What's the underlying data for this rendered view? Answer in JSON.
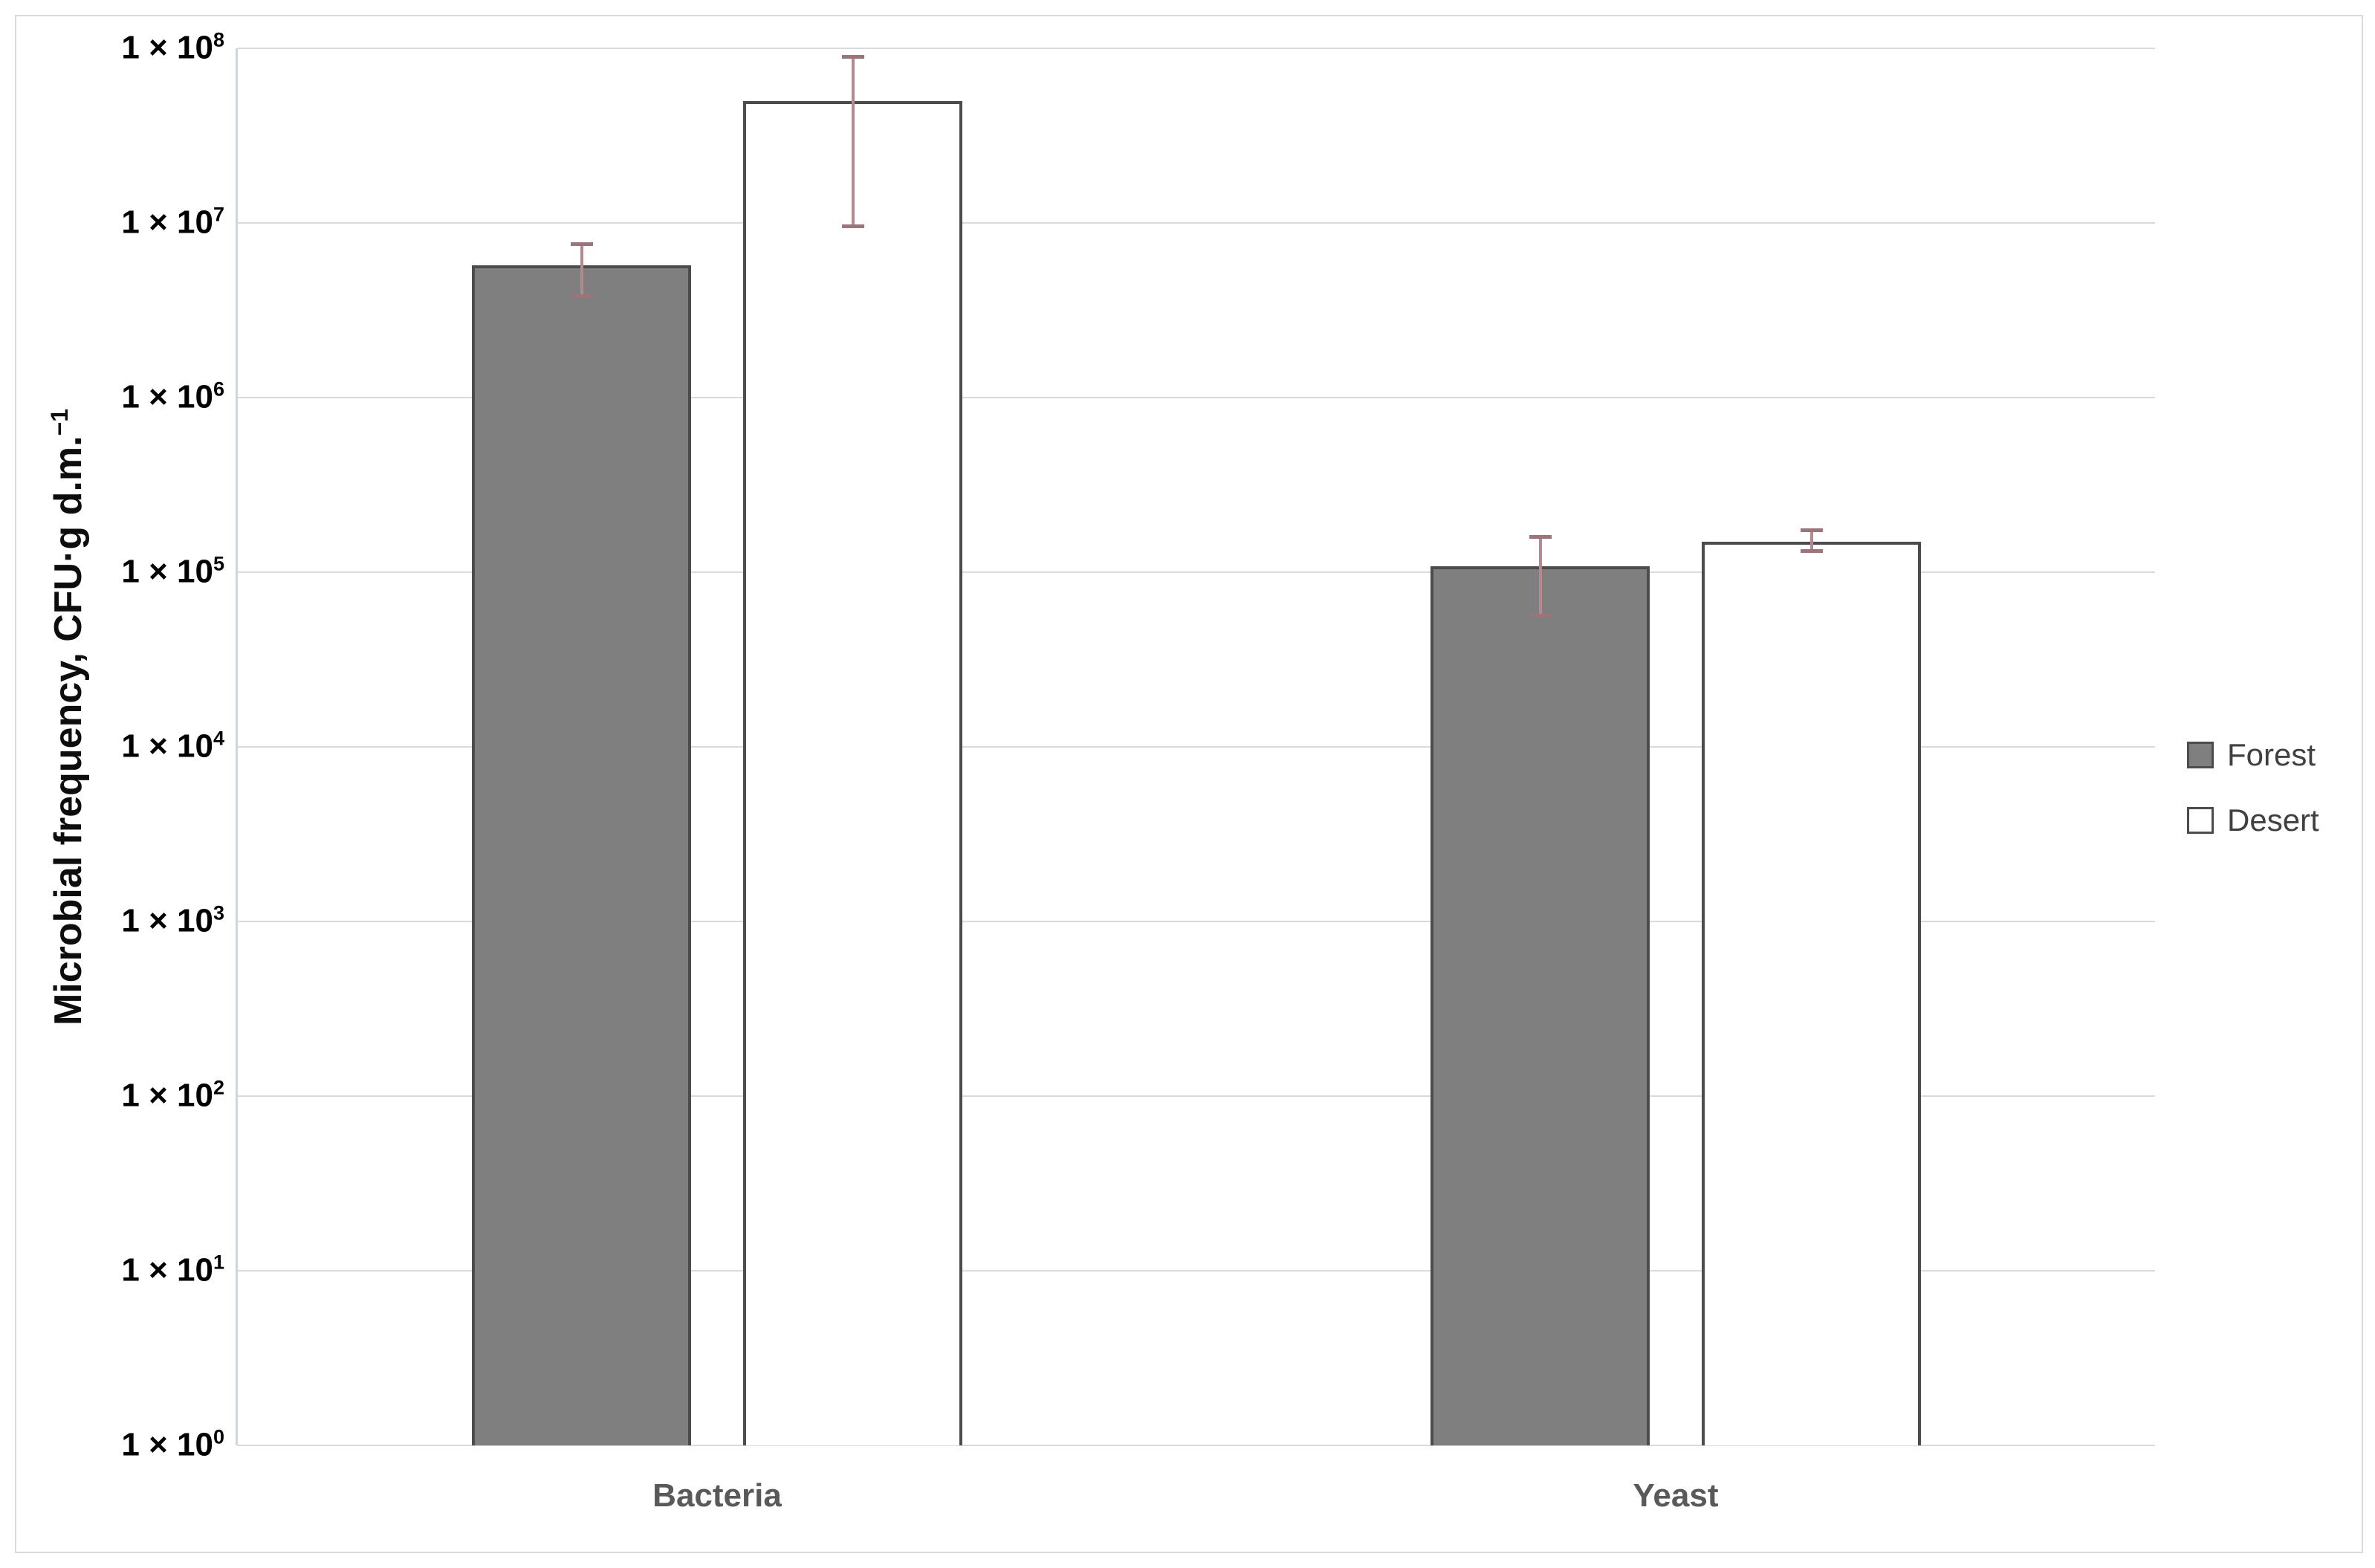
{
  "figure": {
    "background": "#ffffff",
    "border_color": "#d9d9d9"
  },
  "chart_data": {
    "type": "bar",
    "title": "",
    "categories": [
      "Bacteria",
      "Yeast"
    ],
    "series": [
      {
        "name": "Forest",
        "fill": "#7f7f7f",
        "values": [
          5700000,
          108000
        ],
        "error_low": [
          3800000,
          56000
        ],
        "error_high": [
          7600000,
          160000
        ]
      },
      {
        "name": "Desert",
        "fill": "#ffffff",
        "values": [
          50000000,
          150000
        ],
        "error_low": [
          9500000,
          132000
        ],
        "error_high": [
          90000000,
          175000
        ]
      }
    ],
    "ylabel": {
      "base": "Microbial frequency, CFU·g d.m.",
      "sup": "−1"
    },
    "ytick": {
      "base": "1 × 10",
      "exponents": [
        8,
        7,
        6,
        5,
        4,
        3,
        2,
        1,
        0
      ]
    },
    "yscale": "log",
    "ylim": [
      1,
      100000000
    ],
    "grid": true,
    "legend_position": "right",
    "colors": {
      "bar_border": "#4c4c4c",
      "error_line": "#b48a8f",
      "error_cap": "#9c757a",
      "gridline": "#d9d9d9",
      "y_axis_line": "#ccd8dc",
      "tick_label": "#000000",
      "category_label": "#595959",
      "legend_label": "#404040",
      "axis_title": "#0d0d0d"
    }
  }
}
